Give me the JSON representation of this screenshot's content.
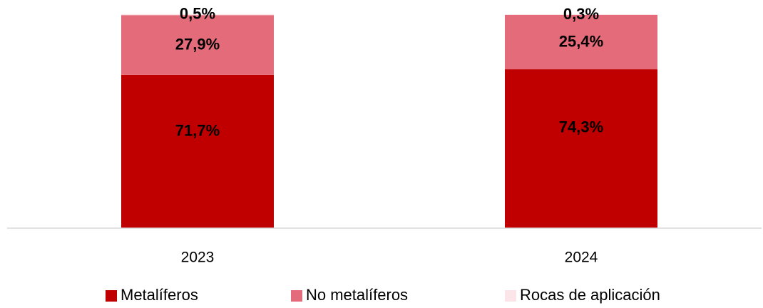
{
  "chart_data": {
    "type": "bar",
    "stacked": true,
    "categories": [
      "2023",
      "2024"
    ],
    "series": [
      {
        "name": "Metalíferos",
        "values": [
          71.7,
          74.3
        ],
        "labels": [
          "71,7%",
          "74,3%"
        ],
        "color": "#c00000"
      },
      {
        "name": "No metalíferos",
        "values": [
          27.9,
          25.4
        ],
        "labels": [
          "27,9%",
          "25,4%"
        ],
        "color": "#e46c7a"
      },
      {
        "name": "Rocas de aplicación",
        "values": [
          0.5,
          0.3
        ],
        "labels": [
          "0,5%",
          "0,3%"
        ],
        "color": "#fbe5e8"
      }
    ],
    "ylim": [
      0,
      100
    ],
    "grid": false,
    "legend_position": "bottom",
    "title": "",
    "xlabel": "",
    "ylabel": ""
  }
}
